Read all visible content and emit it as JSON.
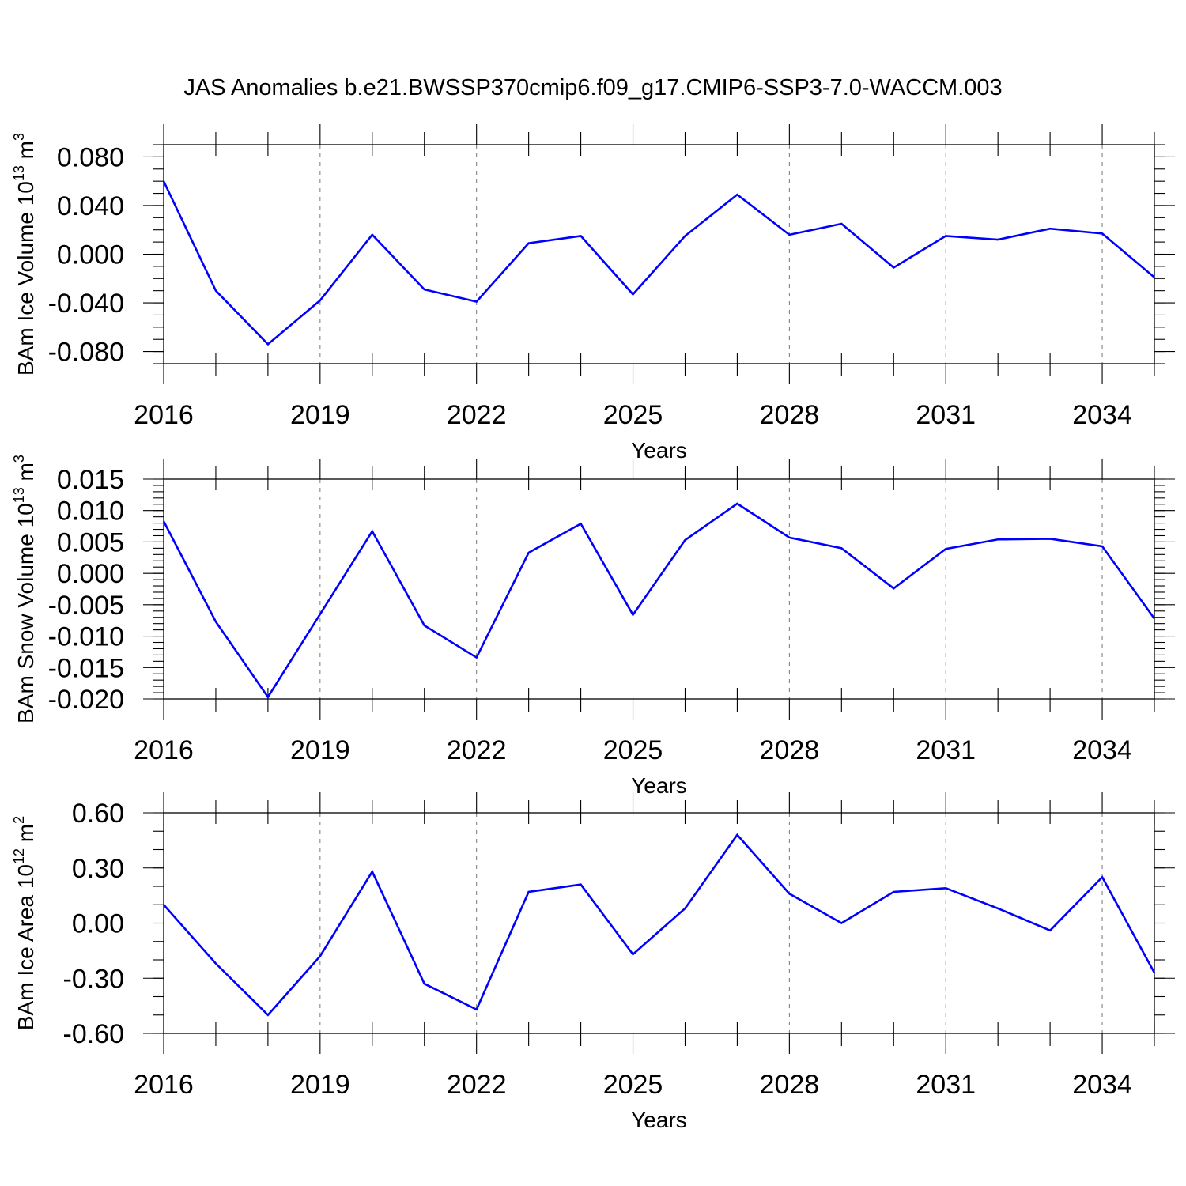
{
  "title": "JAS Anomalies b.e21.BWSSP370cmip6.f09_g17.CMIP6-SSP3-7.0-WACCM.003",
  "chart_data": [
    {
      "type": "line",
      "title": "",
      "xlabel": "Years",
      "ylabel_main": "BAm Ice Volume 10",
      "ylabel_exp": "13",
      "ylabel_unit": " m",
      "ylabel_unit_exp": "3",
      "ylabel": "BAm Ice Volume 10^13 m^3",
      "x": [
        2016,
        2017,
        2018,
        2019,
        2020,
        2021,
        2022,
        2023,
        2024,
        2025,
        2026,
        2027,
        2028,
        2029,
        2030,
        2031,
        2032,
        2033,
        2034,
        2035
      ],
      "series": [
        {
          "values": [
            0.06,
            -0.03,
            -0.074,
            -0.038,
            0.016,
            -0.029,
            -0.039,
            0.009,
            0.015,
            -0.033,
            0.015,
            0.049,
            0.016,
            0.025,
            -0.011,
            0.015,
            0.012,
            0.021,
            0.017,
            -0.019
          ]
        }
      ],
      "xlim": [
        2016,
        2035
      ],
      "ylim": [
        -0.09,
        0.09
      ],
      "xticks": [
        2016,
        2019,
        2022,
        2025,
        2028,
        2031,
        2034
      ],
      "xtick_labels": [
        "2016",
        "2019",
        "2022",
        "2025",
        "2028",
        "2031",
        "2034"
      ],
      "yticks": [
        -0.08,
        -0.04,
        0.0,
        0.04,
        0.08
      ],
      "ytick_labels": [
        "-0.080",
        "-0.040",
        "0.000",
        "0.040",
        "0.080"
      ],
      "y_minor_step": 0.01,
      "grid": "vertical dashed at major x ticks",
      "line_color": "#0000ff"
    },
    {
      "type": "line",
      "title": "",
      "xlabel": "Years",
      "ylabel_main": "BAm Snow Volume 10",
      "ylabel_exp": "13",
      "ylabel_unit": " m",
      "ylabel_unit_exp": "3",
      "ylabel": "BAm Snow Volume 10^13 m^3",
      "x": [
        2016,
        2017,
        2018,
        2019,
        2020,
        2021,
        2022,
        2023,
        2024,
        2025,
        2026,
        2027,
        2028,
        2029,
        2030,
        2031,
        2032,
        2033,
        2034,
        2035
      ],
      "series": [
        {
          "values": [
            0.0083,
            -0.0077,
            -0.0197,
            -0.0065,
            0.0067,
            -0.0083,
            -0.0134,
            0.0033,
            0.0079,
            -0.0066,
            0.0053,
            0.0111,
            0.0057,
            0.004,
            -0.0024,
            0.0039,
            0.0054,
            0.0055,
            0.0043,
            -0.0072
          ]
        }
      ],
      "xlim": [
        2016,
        2035
      ],
      "ylim": [
        -0.02,
        0.015
      ],
      "xticks": [
        2016,
        2019,
        2022,
        2025,
        2028,
        2031,
        2034
      ],
      "xtick_labels": [
        "2016",
        "2019",
        "2022",
        "2025",
        "2028",
        "2031",
        "2034"
      ],
      "yticks": [
        -0.02,
        -0.015,
        -0.01,
        -0.005,
        0.0,
        0.005,
        0.01,
        0.015
      ],
      "ytick_labels": [
        "-0.020",
        "-0.015",
        "-0.010",
        "-0.005",
        "0.000",
        "0.005",
        "0.010",
        "0.015"
      ],
      "y_minor_step": 0.001,
      "grid": "vertical dashed at major x ticks",
      "line_color": "#0000ff"
    },
    {
      "type": "line",
      "title": "",
      "xlabel": "Years",
      "ylabel_main": "BAm Ice Area 10",
      "ylabel_exp": "12",
      "ylabel_unit": " m",
      "ylabel_unit_exp": "2",
      "ylabel": "BAm Ice Area 10^12 m^2",
      "x": [
        2016,
        2017,
        2018,
        2019,
        2020,
        2021,
        2022,
        2023,
        2024,
        2025,
        2026,
        2027,
        2028,
        2029,
        2030,
        2031,
        2032,
        2033,
        2034,
        2035
      ],
      "series": [
        {
          "values": [
            0.1,
            -0.22,
            -0.5,
            -0.18,
            0.28,
            -0.33,
            -0.47,
            0.17,
            0.21,
            -0.17,
            0.08,
            0.48,
            0.16,
            0.0,
            0.17,
            0.19,
            0.08,
            -0.04,
            0.25,
            -0.27
          ]
        }
      ],
      "xlim": [
        2016,
        2035
      ],
      "ylim": [
        -0.6,
        0.6
      ],
      "xticks": [
        2016,
        2019,
        2022,
        2025,
        2028,
        2031,
        2034
      ],
      "xtick_labels": [
        "2016",
        "2019",
        "2022",
        "2025",
        "2028",
        "2031",
        "2034"
      ],
      "yticks": [
        -0.6,
        -0.3,
        0.0,
        0.3,
        0.6
      ],
      "ytick_labels": [
        "-0.60",
        "-0.30",
        "0.00",
        "0.30",
        "0.60"
      ],
      "y_minor_step": 0.1,
      "grid": "vertical dashed at major x ticks",
      "line_color": "#0000ff"
    }
  ]
}
